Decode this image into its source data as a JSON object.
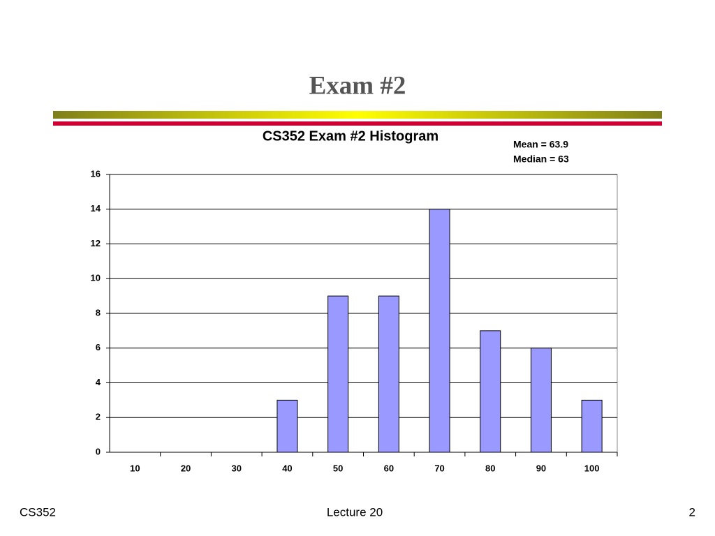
{
  "slide": {
    "title": "Exam #2",
    "footer": {
      "left": "CS352",
      "center": "Lecture 20",
      "right": "2"
    }
  },
  "chart_data": {
    "type": "bar",
    "title": "CS352 Exam #2 Histogram",
    "annotations": [
      "Mean = 63.9",
      "Median = 63"
    ],
    "categories": [
      "10",
      "20",
      "30",
      "40",
      "50",
      "60",
      "70",
      "80",
      "90",
      "100"
    ],
    "values": [
      0,
      0,
      0,
      3,
      9,
      9,
      14,
      7,
      6,
      3
    ],
    "color": "#9999ff",
    "ylim": [
      0,
      16
    ],
    "yticks": [
      0,
      2,
      4,
      6,
      8,
      10,
      12,
      14,
      16
    ],
    "grid": true
  }
}
